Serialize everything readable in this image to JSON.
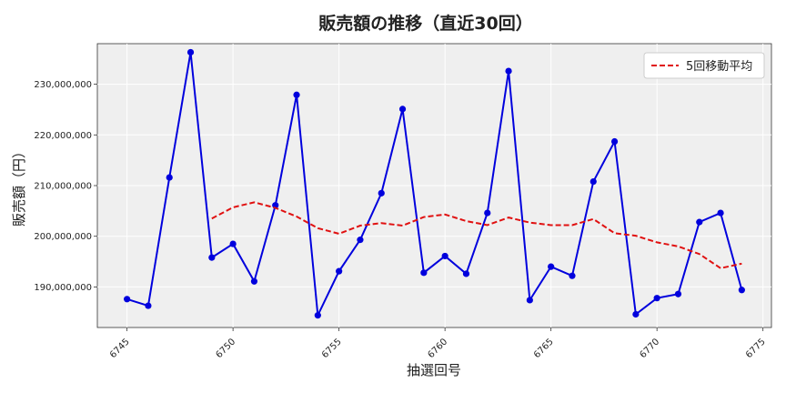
{
  "chart_data": {
    "type": "line",
    "title": "販売額の推移（直近30回）",
    "xlabel": "抽選回号",
    "ylabel": "販売額（円）",
    "xlim": [
      6743.6,
      6775.4
    ],
    "ylim": [
      182000000,
      238000000
    ],
    "x_ticks": [
      6745,
      6750,
      6755,
      6760,
      6765,
      6770,
      6775
    ],
    "y_ticks": [
      190000000,
      200000000,
      210000000,
      220000000,
      230000000
    ],
    "y_tick_labels": [
      "190,000,000",
      "200,000,000",
      "210,000,000",
      "220,000,000",
      "230,000,000"
    ],
    "grid": true,
    "legend_position": "top-right",
    "x": [
      6745,
      6746,
      6747,
      6748,
      6749,
      6750,
      6751,
      6752,
      6753,
      6754,
      6755,
      6756,
      6757,
      6758,
      6759,
      6760,
      6761,
      6762,
      6763,
      6764,
      6765,
      6766,
      6767,
      6768,
      6769,
      6770,
      6771,
      6772,
      6773,
      6774
    ],
    "series": [
      {
        "name": "",
        "color": "#0000dd",
        "style": "solid-with-markers",
        "values": [
          187600000,
          186300000,
          211600000,
          236300000,
          195800000,
          198500000,
          191100000,
          206100000,
          227900000,
          184400000,
          193100000,
          199300000,
          208500000,
          225100000,
          192800000,
          196100000,
          192600000,
          204600000,
          232600000,
          187400000,
          194000000,
          192200000,
          210800000,
          218700000,
          184600000,
          187800000,
          188600000,
          202800000,
          204600000,
          189400000
        ]
      },
      {
        "name": "5回移動平均",
        "color": "#e01010",
        "style": "dashed",
        "x": [
          6749,
          6750,
          6751,
          6752,
          6753,
          6754,
          6755,
          6756,
          6757,
          6758,
          6759,
          6760,
          6761,
          6762,
          6763,
          6764,
          6765,
          6766,
          6767,
          6768,
          6769,
          6770,
          6771,
          6772,
          6773,
          6774
        ],
        "values": [
          203500000,
          205700000,
          206700000,
          205600000,
          203900000,
          201600000,
          200500000,
          202100000,
          202600000,
          202100000,
          203800000,
          204300000,
          203000000,
          202200000,
          203700000,
          202700000,
          202200000,
          202200000,
          203400000,
          200600000,
          200100000,
          198800000,
          198000000,
          196500000,
          193700000,
          194600000
        ]
      }
    ]
  }
}
